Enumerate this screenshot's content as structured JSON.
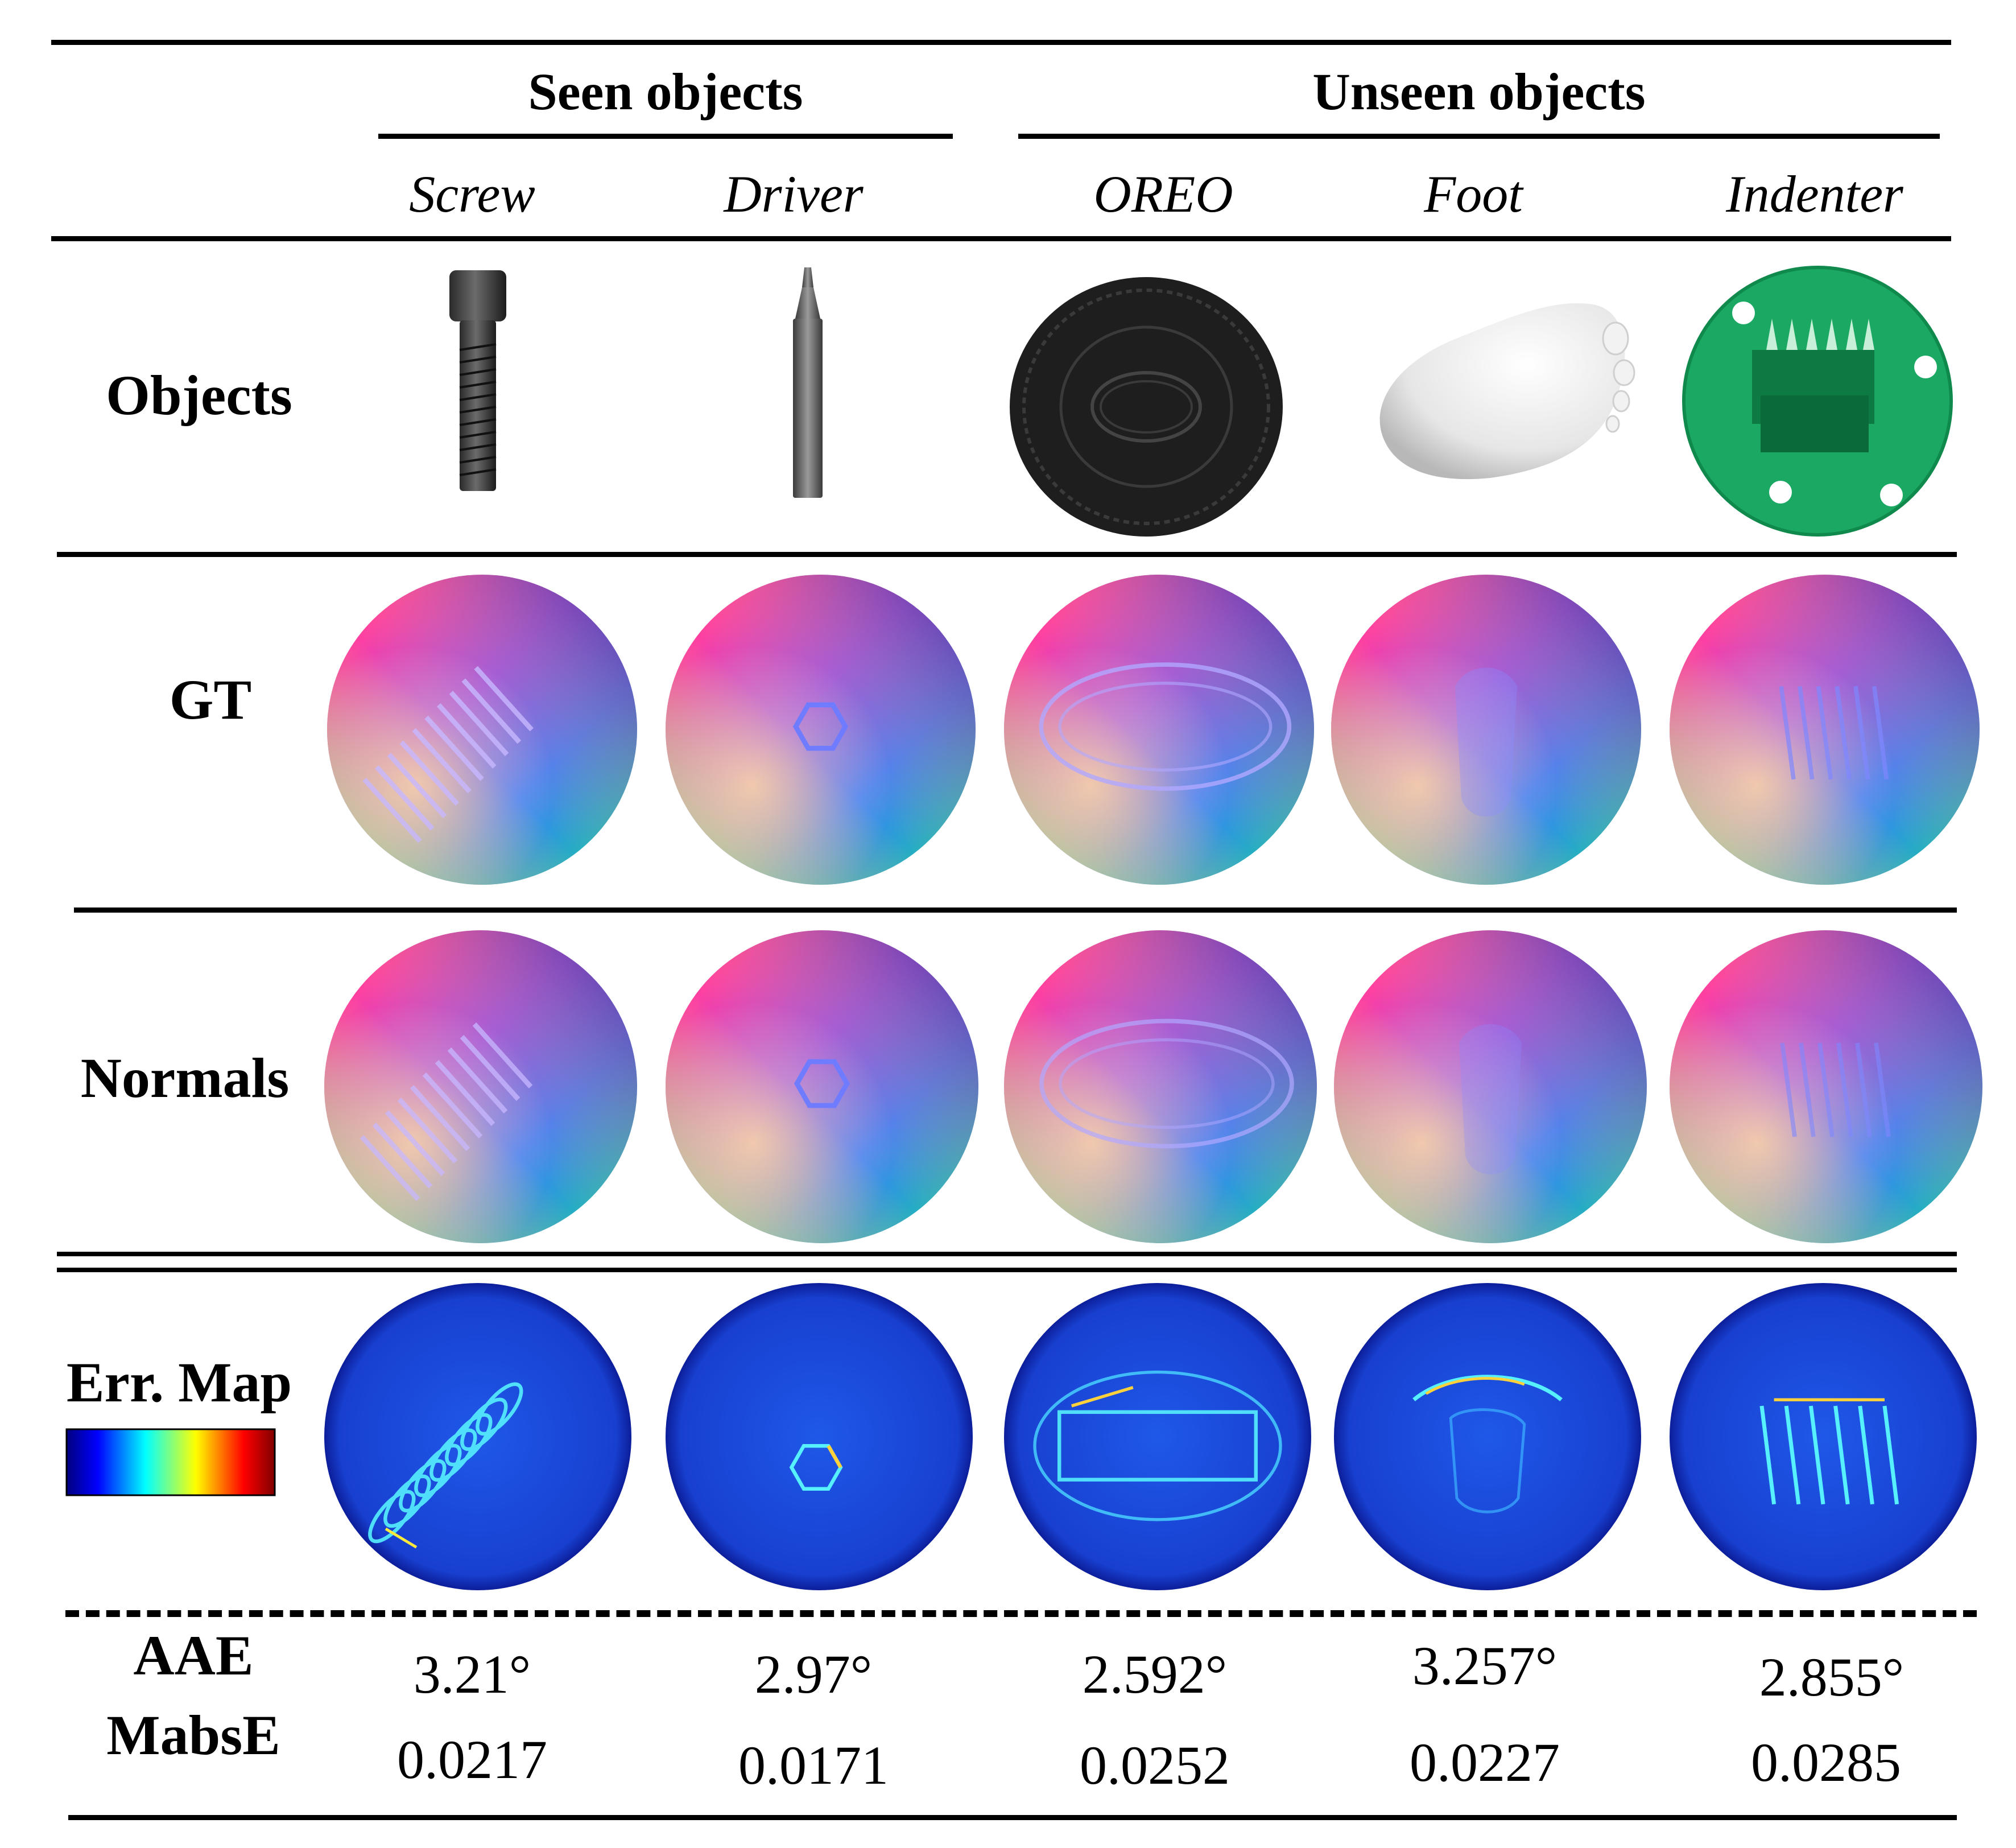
{
  "groups": {
    "seen": "Seen objects",
    "unseen": "Unseen objects"
  },
  "columns": [
    {
      "name": "Screw",
      "photo_icon": "screw-photo",
      "aae": "3.21°",
      "mabse": "0.0217"
    },
    {
      "name": "Driver",
      "photo_icon": "driver-photo",
      "aae": "2.97°",
      "mabse": "0.0171"
    },
    {
      "name": "OREO",
      "photo_icon": "oreo-photo",
      "aae": "2.592°",
      "mabse": "0.0252"
    },
    {
      "name": "Foot",
      "photo_icon": "foot-photo",
      "aae": "3.257°",
      "mabse": "0.0227"
    },
    {
      "name": "Indenter",
      "photo_icon": "indenter-photo",
      "aae": "2.855°",
      "mabse": "0.0285"
    }
  ],
  "rows": {
    "objects": "Objects",
    "gt": "GT",
    "normals": "Normals",
    "err_map": "Err. Map",
    "aae": "AAE",
    "mabse": "MabsE"
  },
  "colors": {
    "rule": "#000000",
    "normal_pink": "#f0458f",
    "normal_purple": "#5a1aa8",
    "normal_blue": "#3a66ff",
    "normal_green": "#3cf07a",
    "normal_teal": "#1ab6a6",
    "err_base": "#1a3fd8",
    "oreo_black": "#222222",
    "indenter_green": "#1aa862",
    "colorbar": [
      "#000080",
      "#0000ff",
      "#00ffff",
      "#ffff00",
      "#ff0000",
      "#800000"
    ]
  }
}
